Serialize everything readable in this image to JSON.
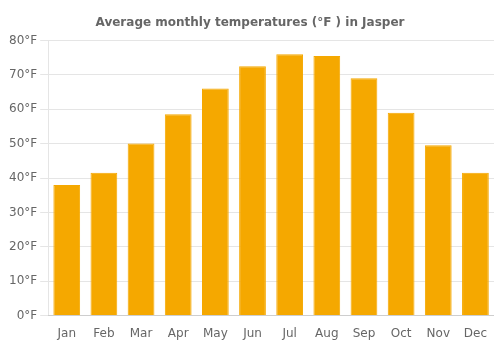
{
  "chart_data": {
    "type": "bar",
    "title": "Average monthly temperatures (°F ) in Jasper",
    "categories": [
      "Jan",
      "Feb",
      "Mar",
      "Apr",
      "May",
      "Jun",
      "Jul",
      "Aug",
      "Sep",
      "Oct",
      "Nov",
      "Dec"
    ],
    "values": [
      38,
      41.5,
      50,
      58.5,
      66,
      72.5,
      76,
      75.5,
      69,
      59,
      49.5,
      41.5
    ],
    "color": "#F5A800",
    "ylim": [
      0,
      80
    ],
    "yticks": [
      {
        "value": 0,
        "label": "0°F"
      },
      {
        "value": 10,
        "label": "10°F"
      },
      {
        "value": 20,
        "label": "20°F"
      },
      {
        "value": 30,
        "label": "30°F"
      },
      {
        "value": 40,
        "label": "40°F"
      },
      {
        "value": 50,
        "label": "50°F"
      },
      {
        "value": 60,
        "label": "60°F"
      },
      {
        "value": 70,
        "label": "70°F"
      },
      {
        "value": 80,
        "label": "80°F"
      }
    ],
    "grid": true
  }
}
